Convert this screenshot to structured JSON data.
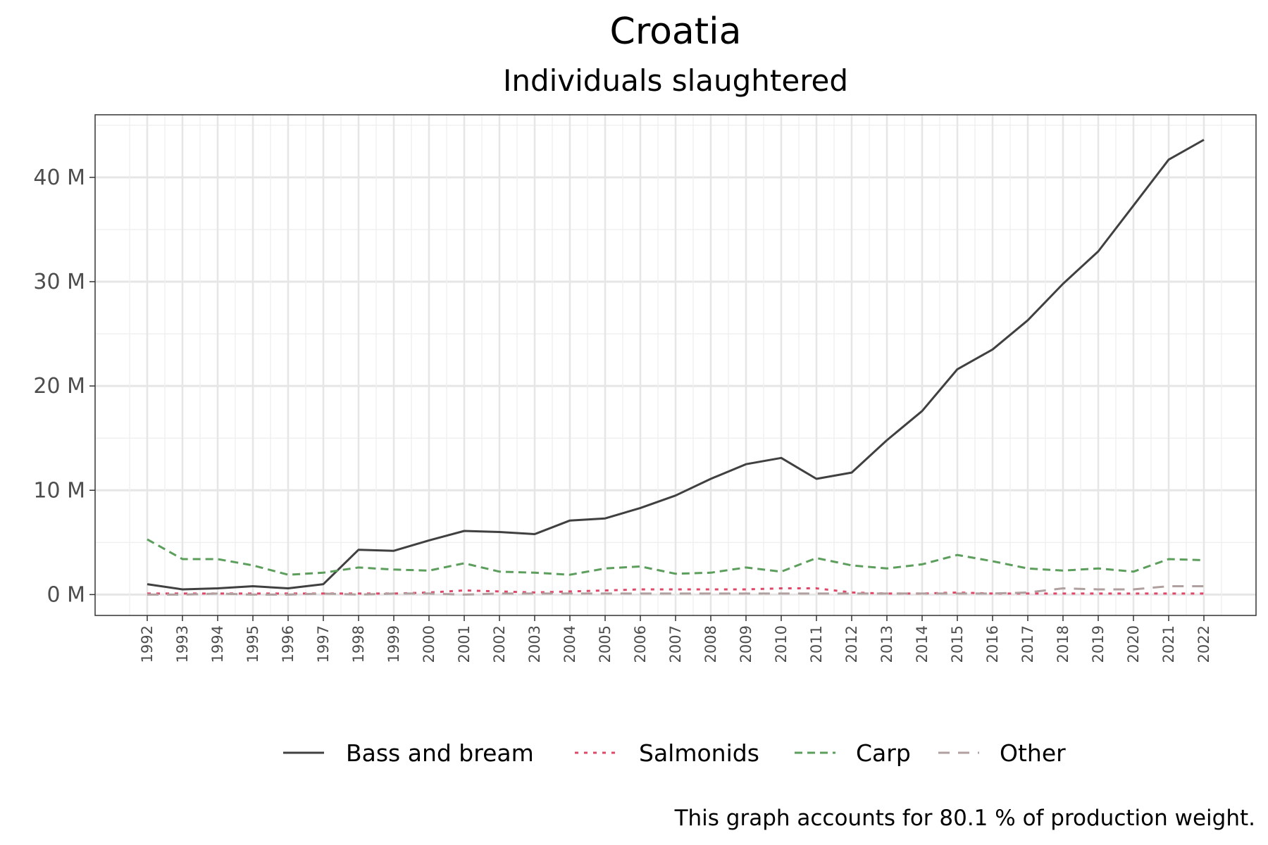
{
  "chart_data": {
    "type": "line",
    "title": "Croatia",
    "subtitle": "Individuals slaughtered",
    "xlabel": "",
    "ylabel": "",
    "ylim": [
      -2,
      46
    ],
    "y_ticks": [
      {
        "value": 0,
        "label": "0 M"
      },
      {
        "value": 10,
        "label": "10 M"
      },
      {
        "value": 20,
        "label": "20 M"
      },
      {
        "value": 30,
        "label": "30 M"
      },
      {
        "value": 40,
        "label": "40 M"
      }
    ],
    "x": [
      "1992",
      "1993",
      "1994",
      "1995",
      "1996",
      "1997",
      "1998",
      "1999",
      "2000",
      "2001",
      "2002",
      "2003",
      "2004",
      "2005",
      "2006",
      "2007",
      "2008",
      "2009",
      "2010",
      "2011",
      "2012",
      "2013",
      "2014",
      "2015",
      "2016",
      "2017",
      "2018",
      "2019",
      "2020",
      "2021",
      "2022"
    ],
    "grid": true,
    "legend_position": "bottom",
    "series": [
      {
        "name": "Bass and bream",
        "color": "#404040",
        "dash": "solid",
        "values": [
          1.0,
          0.5,
          0.6,
          0.8,
          0.6,
          1.0,
          4.3,
          4.2,
          5.2,
          6.1,
          6.0,
          5.8,
          7.1,
          7.3,
          8.3,
          9.5,
          11.1,
          12.5,
          13.1,
          11.1,
          11.7,
          14.8,
          17.6,
          21.6,
          23.5,
          26.3,
          29.8,
          32.9,
          37.3,
          41.7,
          43.6
        ]
      },
      {
        "name": "Salmonids",
        "color": "#e0486a",
        "dash": "dotted",
        "values": [
          0.1,
          0.1,
          0.1,
          0.1,
          0.1,
          0.1,
          0.1,
          0.1,
          0.2,
          0.4,
          0.3,
          0.2,
          0.3,
          0.4,
          0.5,
          0.5,
          0.5,
          0.5,
          0.6,
          0.6,
          0.2,
          0.1,
          0.1,
          0.2,
          0.1,
          0.1,
          0.1,
          0.1,
          0.1,
          0.1,
          0.1
        ]
      },
      {
        "name": "Carp",
        "color": "#5c9e5c",
        "dash": "dashed",
        "values": [
          5.3,
          3.4,
          3.4,
          2.8,
          1.9,
          2.1,
          2.6,
          2.4,
          2.3,
          3.0,
          2.2,
          2.1,
          1.9,
          2.5,
          2.7,
          2.0,
          2.1,
          2.6,
          2.2,
          3.5,
          2.8,
          2.5,
          2.9,
          3.8,
          3.2,
          2.5,
          2.3,
          2.5,
          2.2,
          3.4,
          3.3
        ]
      },
      {
        "name": "Other",
        "color": "#b0a0a0",
        "dash": "longdash",
        "values": [
          0.0,
          0.0,
          0.1,
          0.0,
          0.0,
          0.1,
          0.0,
          0.1,
          0.1,
          0.0,
          0.1,
          0.1,
          0.1,
          0.1,
          0.1,
          0.1,
          0.1,
          0.1,
          0.1,
          0.1,
          0.1,
          0.1,
          0.1,
          0.1,
          0.1,
          0.2,
          0.6,
          0.5,
          0.5,
          0.8,
          0.8
        ]
      }
    ],
    "caption": "This graph accounts for 80.1 % of production weight."
  }
}
